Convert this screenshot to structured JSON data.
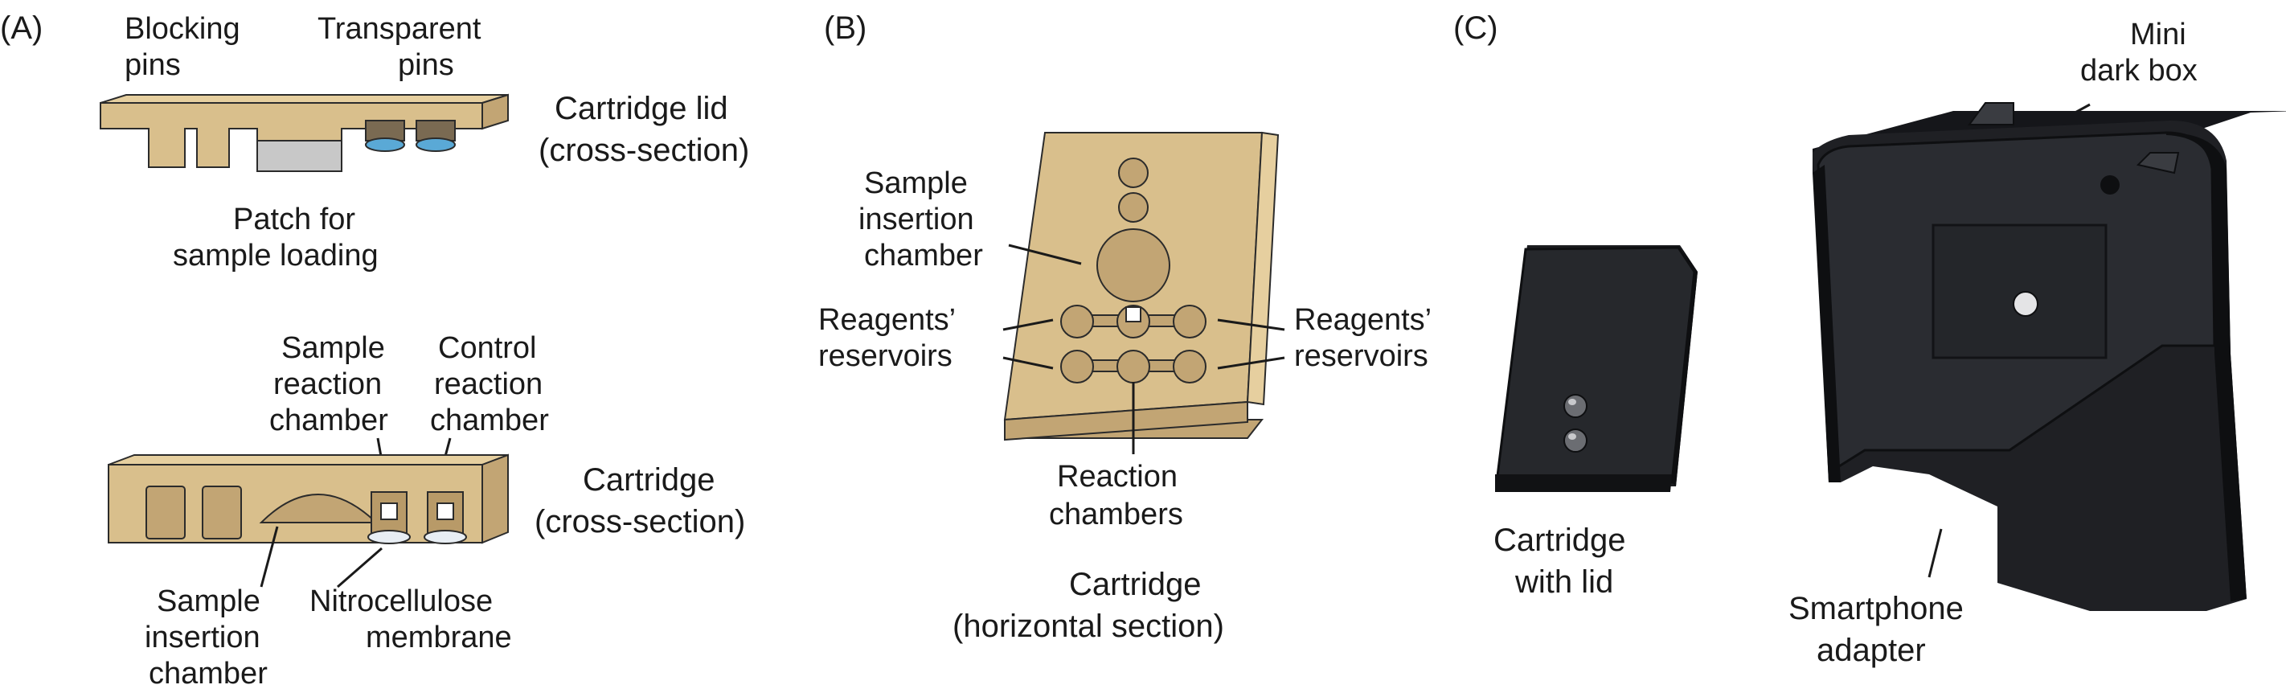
{
  "panels": {
    "a": {
      "label": "(A)",
      "blocking_pins": [
        "Blocking",
        "pins"
      ],
      "transparent_pins": [
        "Transparent",
        "pins"
      ],
      "lid_title": [
        "Cartridge lid",
        "(cross-section)"
      ],
      "patch": [
        "Patch for",
        "sample loading"
      ],
      "sample_reaction": [
        "Sample",
        "reaction",
        "chamber"
      ],
      "control_reaction": [
        "Control",
        "reaction",
        "chamber"
      ],
      "cartridge_title": [
        "Cartridge",
        "(cross-section)"
      ],
      "sample_insertion": [
        "Sample",
        "insertion",
        "chamber"
      ],
      "nitrocellulose": [
        "Nitrocellulose",
        "membrane"
      ]
    },
    "b": {
      "label": "(B)",
      "sample_insertion": [
        "Sample",
        "insertion",
        "chamber"
      ],
      "reagents_left": [
        "Reagents’",
        "reservoirs"
      ],
      "reagents_right": [
        "Reagents’",
        "reservoirs"
      ],
      "reaction_chambers": [
        "Reaction",
        "chambers"
      ],
      "title": [
        "Cartridge",
        "(horizontal section)"
      ]
    },
    "c": {
      "label": "(C)",
      "mini_dark_box": [
        "Mini",
        "dark box"
      ],
      "cartridge_with_lid": [
        "Cartridge",
        "with lid"
      ],
      "smartphone_adapter": [
        "Smartphone",
        "adapter"
      ]
    }
  },
  "colors": {
    "cartridge_tan": "#d9bf8c",
    "pin_blue": "#5aa9d6",
    "device_black": "#1c1d20"
  }
}
